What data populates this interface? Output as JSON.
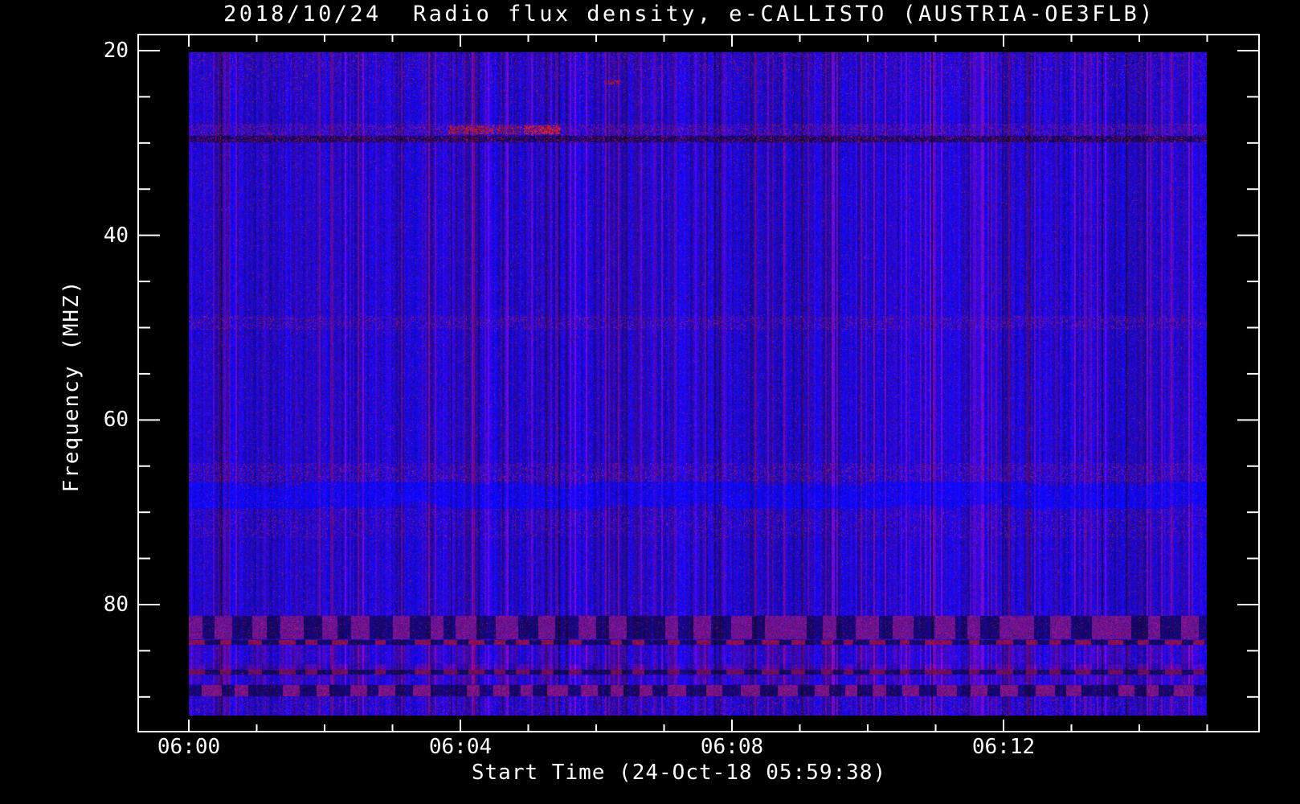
{
  "figure": {
    "background_color": "#000000",
    "text_color": "#ffffff"
  },
  "chart_data": {
    "type": "heatmap",
    "subtype": "radio-spectrogram",
    "title": "2018/10/24  Radio flux density, e-CALLISTO (AUSTRIA-OE3FLB)",
    "xlabel": "Start Time (24-Oct-18 05:59:38)",
    "ylabel": "Frequency (MHZ)",
    "grid": false,
    "legend": "none",
    "x_axis": {
      "tick_labels": [
        "06:00",
        "06:04",
        "06:08",
        "06:12"
      ],
      "tick_minutes": [
        0,
        4,
        8,
        12
      ],
      "minor_tick_every_min": 1,
      "minor_tick_max_min": 15,
      "data_range_min": [
        0,
        15
      ],
      "axis_range_min": [
        -0.75,
        15.78
      ]
    },
    "y_axis": {
      "tick_labels": [
        "20",
        "40",
        "60",
        "80"
      ],
      "tick_values": [
        20,
        40,
        60,
        80
      ],
      "minor_tick_step_mhz": 5,
      "data_range_mhz": [
        20.2,
        92.0
      ],
      "axis_range_mhz": [
        18.3,
        93.8
      ],
      "inverted": true
    },
    "palette": {
      "base_blue": "#2517e6",
      "bright_blue": "#3023ff",
      "purple_rfi": "#64288f",
      "dark_navy": "#141078",
      "speckle_red": "#8c2248",
      "burst_red": "#d03010",
      "frame_white": "#ffffff",
      "background": "#000000"
    },
    "bands": [
      {
        "mhz": [
          20.2,
          26.8
        ],
        "kind": "dense-speckle-fade",
        "note": "enhanced purple speckle noise near top of band"
      },
      {
        "mhz": [
          27.9,
          29.1
        ],
        "kind": "red-speckle-row",
        "note": "RFI channel with red interference speckles"
      },
      {
        "mhz": [
          29.2,
          29.9
        ],
        "kind": "dark-line",
        "note": "dark absorption-like RFI line across full duration"
      },
      {
        "mhz": [
          48.7,
          50.2
        ],
        "kind": "dense-speckle",
        "note": "speckled interference band"
      },
      {
        "mhz": [
          64.6,
          66.6
        ],
        "kind": "dense-speckle",
        "note": "speckled band above bright ridge"
      },
      {
        "mhz": [
          66.6,
          69.6
        ],
        "kind": "bright-wavy-band",
        "note": "brighter blue wavy horizontal ridge"
      },
      {
        "mhz": [
          69.6,
          72.7
        ],
        "kind": "mild-speckle",
        "note": "mild speckle band"
      },
      {
        "mhz": [
          81.2,
          83.7
        ],
        "kind": "checker-strong",
        "note": "strong checkered purple/navy RFI blocks"
      },
      {
        "mhz": [
          83.8,
          84.3
        ],
        "kind": "checker-thin-red",
        "note": "thin red/blue checkered RFI row"
      },
      {
        "mhz": [
          84.4,
          86.3
        ],
        "kind": "checker-mild",
        "note": "mild checkered modulation"
      },
      {
        "mhz": [
          86.4,
          87.0
        ],
        "kind": "purple-row",
        "note": "purple tinted row"
      },
      {
        "mhz": [
          87.0,
          87.5
        ],
        "kind": "dark-checker-line",
        "note": "dark navy line with red blocks"
      },
      {
        "mhz": [
          87.6,
          88.6
        ],
        "kind": "checker-mild",
        "note": "mild checkered modulation"
      },
      {
        "mhz": [
          88.7,
          89.9
        ],
        "kind": "checker-strong2",
        "note": "strong checkered navy/purple RFI blocks"
      },
      {
        "mhz": [
          90.0,
          92.0
        ],
        "kind": "mild-speckle",
        "note": "noise to bottom edge of data"
      }
    ],
    "bursts": [
      {
        "t_min": [
          3.82,
          4.49
        ],
        "mhz": [
          28.1,
          29.0
        ],
        "intensity": 0.5,
        "note": "red RFI burst"
      },
      {
        "t_min": [
          4.53,
          4.89
        ],
        "mhz": [
          28.1,
          29.0
        ],
        "intensity": 0.35,
        "note": "red RFI burst"
      },
      {
        "t_min": [
          4.93,
          5.46
        ],
        "mhz": [
          28.1,
          29.0
        ],
        "intensity": 0.62,
        "note": "brightest red RFI burst"
      },
      {
        "t_min": [
          6.12,
          6.35
        ],
        "mhz": [
          23.1,
          23.6
        ],
        "intensity": 0.45,
        "note": "small red dash"
      }
    ]
  }
}
